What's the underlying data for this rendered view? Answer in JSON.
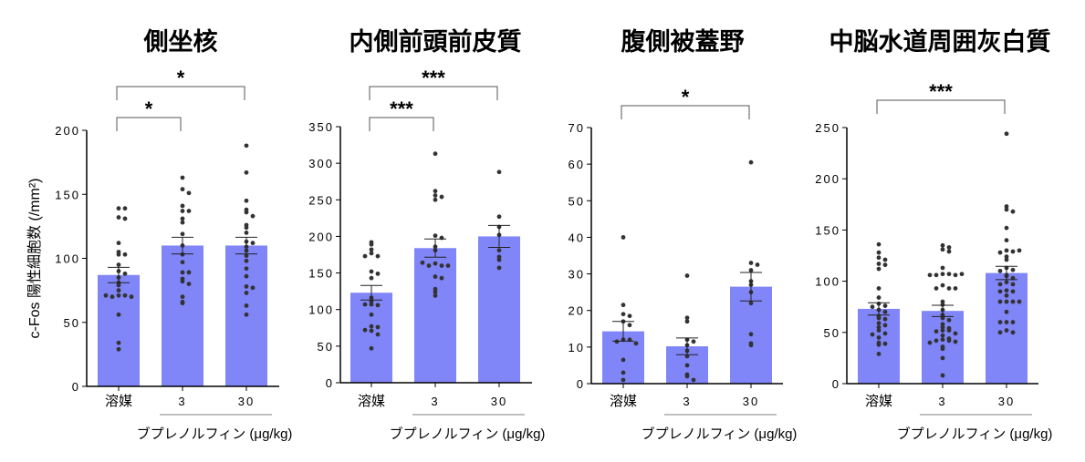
{
  "colors": {
    "bar": "#8085f7",
    "dot": "#333333",
    "axis": "#000000",
    "bracket": "#555555"
  },
  "chart_data": [
    {
      "type": "bar",
      "title": "側坐核",
      "ylabel": "c-Fos 陽性細胞数 (/mm²)",
      "ylim": [
        0,
        200
      ],
      "yticks": [
        0,
        50,
        100,
        150,
        200
      ],
      "categories": [
        "溶媒",
        "3",
        "30"
      ],
      "group_label": "ブプレノルフィン (μg/kg)",
      "values": [
        87,
        110,
        110
      ],
      "sem": [
        6,
        6.5,
        6.5
      ],
      "points": [
        [
          139,
          139,
          132,
          131,
          112,
          105,
          103,
          103,
          95,
          90,
          88,
          85,
          81,
          79,
          75,
          71,
          71,
          70,
          70,
          71,
          56,
          34,
          29
        ],
        [
          163,
          154,
          151,
          141,
          137,
          137,
          131,
          128,
          119,
          110,
          103,
          97,
          89,
          89,
          84,
          82,
          80,
          70,
          65,
          66
        ],
        [
          188,
          167,
          145,
          138,
          136,
          133,
          126,
          124,
          120,
          113,
          112,
          109,
          106,
          102,
          98,
          92,
          86,
          78,
          77,
          73,
          63,
          56
        ]
      ],
      "significance": [
        {
          "from": 0,
          "to": 2,
          "label": "*"
        },
        {
          "from": 0,
          "to": 1,
          "label": "*"
        }
      ]
    },
    {
      "type": "bar",
      "title": "内側前頭前皮質",
      "ylabel": "",
      "ylim": [
        0,
        350
      ],
      "yticks": [
        0,
        50,
        100,
        150,
        200,
        250,
        300,
        350
      ],
      "categories": [
        "溶媒",
        "3",
        "30"
      ],
      "group_label": "ブプレノルフィン (μg/kg)",
      "values": [
        123,
        184,
        200
      ],
      "sem": [
        10,
        12.5,
        15
      ],
      "points": [
        [
          192,
          189,
          182,
          177,
          173,
          173,
          152,
          149,
          143,
          116,
          111,
          107,
          106,
          107,
          93,
          77,
          76,
          72,
          71,
          66,
          47
        ],
        [
          313,
          262,
          256,
          254,
          250,
          201,
          198,
          186,
          181,
          163,
          160,
          160,
          160,
          164,
          145,
          143,
          128,
          124,
          119
        ],
        [
          288,
          227,
          213,
          202,
          181,
          172,
          168,
          157
        ]
      ],
      "significance": [
        {
          "from": 0,
          "to": 2,
          "label": "***"
        },
        {
          "from": 0,
          "to": 1,
          "label": "***"
        }
      ]
    },
    {
      "type": "bar",
      "title": "腹側被蓋野",
      "ylabel": "",
      "ylim": [
        0,
        70
      ],
      "yticks": [
        0,
        10,
        20,
        30,
        40,
        50,
        60,
        70
      ],
      "categories": [
        "溶媒",
        "3",
        "30"
      ],
      "group_label": "ブプレノルフィン (μg/kg)",
      "values": [
        14.3,
        10.2,
        26.5
      ],
      "sem": [
        2.7,
        2.3,
        3.9
      ],
      "points": [
        [
          40,
          21.5,
          19,
          18.5,
          17,
          16,
          12,
          12,
          11.5,
          11,
          6.5,
          3,
          1
        ],
        [
          29.5,
          18,
          17,
          12,
          11.5,
          10.5,
          9,
          7.5,
          5,
          2.5,
          2,
          1
        ],
        [
          60.5,
          33,
          32.5,
          31,
          28,
          27,
          25,
          22,
          13.5,
          11,
          10.5
        ]
      ],
      "significance": [
        {
          "from": 0,
          "to": 2,
          "label": "*"
        }
      ]
    },
    {
      "type": "bar",
      "title": "中脳水道周囲灰白質",
      "ylabel": "",
      "ylim": [
        0,
        250
      ],
      "yticks": [
        0,
        50,
        100,
        150,
        200,
        250
      ],
      "categories": [
        "溶媒",
        "3",
        "30"
      ],
      "group_label": "ブプレノルフィン (μg/kg)",
      "values": [
        73,
        71,
        108
      ],
      "sem": [
        6,
        5.5,
        6.5
      ],
      "points": [
        [
          136,
          128,
          123,
          121,
          117,
          116,
          112,
          93,
          84,
          78,
          76,
          75,
          72,
          70,
          66,
          64,
          63,
          59,
          57,
          55,
          52,
          49,
          48,
          45,
          40,
          39,
          38,
          29
        ],
        [
          135,
          133,
          131,
          129,
          113,
          107,
          107,
          106,
          106,
          106,
          107,
          96,
          93,
          93,
          93,
          80,
          77,
          72,
          67,
          64,
          62,
          58,
          55,
          54,
          52,
          52,
          51,
          49,
          47,
          44,
          43,
          42,
          42,
          41,
          40,
          36,
          34,
          25,
          8
        ],
        [
          244,
          173,
          170,
          168,
          152,
          140,
          130,
          129,
          128,
          130,
          124,
          121,
          113,
          111,
          110,
          105,
          106,
          103,
          99,
          97,
          97,
          91,
          90,
          90,
          86,
          80,
          80,
          80,
          80,
          70,
          60,
          60,
          60,
          52,
          50,
          50
        ]
      ],
      "significance": [
        {
          "from": 0,
          "to": 2,
          "label": "***"
        }
      ]
    }
  ]
}
